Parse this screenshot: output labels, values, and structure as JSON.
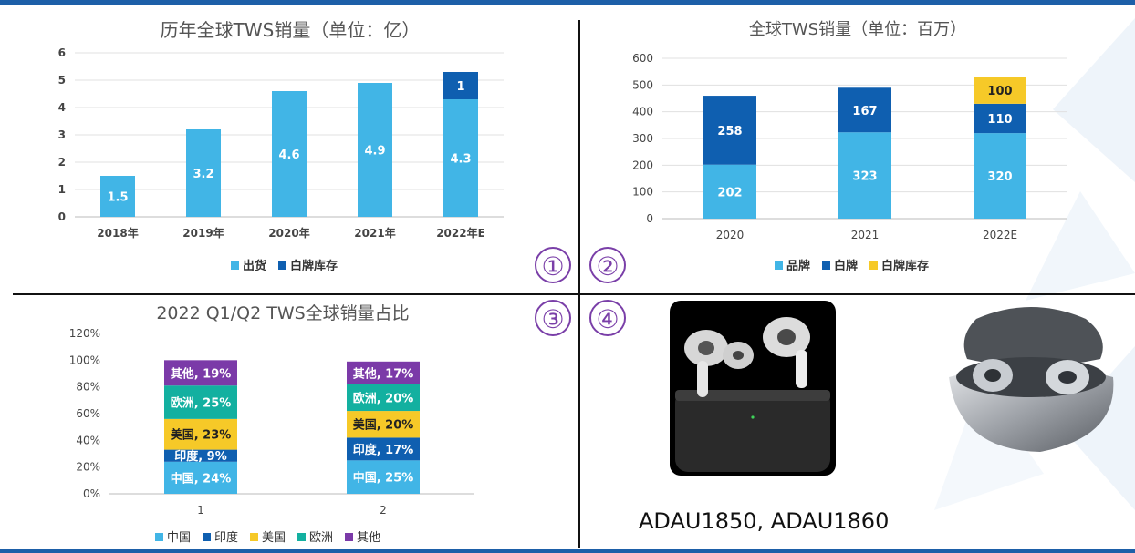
{
  "chart_data": [
    {
      "type": "bar",
      "stacked": true,
      "title": "历年全球TWS销量（单位：亿）",
      "categories": [
        "2018年",
        "2019年",
        "2020年",
        "2021年",
        "2022年E"
      ],
      "series": [
        {
          "name": "出货",
          "color": "#41b5e6",
          "values": [
            1.5,
            3.2,
            4.6,
            4.9,
            4.3
          ]
        },
        {
          "name": "白牌库存",
          "color": "#0f5fb0",
          "values": [
            0,
            0,
            0,
            0,
            1
          ]
        }
      ],
      "ylim": [
        0,
        6
      ],
      "yticks": [
        "0",
        "1",
        "2",
        "3",
        "4",
        "5",
        "6"
      ],
      "grid": true,
      "legend": "bottom"
    },
    {
      "type": "bar",
      "stacked": true,
      "title": "全球TWS销量（单位：百万）",
      "categories": [
        "2020",
        "2021",
        "2022E"
      ],
      "series": [
        {
          "name": "品牌",
          "color": "#41b5e6",
          "values": [
            202,
            323,
            320
          ]
        },
        {
          "name": "白牌",
          "color": "#0f5fb0",
          "values": [
            258,
            167,
            110
          ]
        },
        {
          "name": "白牌库存",
          "color": "#f6c928",
          "values": [
            0,
            0,
            100
          ]
        }
      ],
      "ylim": [
        0,
        600
      ],
      "yticks": [
        "0",
        "100",
        "200",
        "300",
        "400",
        "500",
        "600"
      ],
      "grid": true,
      "legend": "bottom"
    },
    {
      "type": "bar",
      "stacked": true,
      "percent": true,
      "title": "2022 Q1/Q2 TWS全球销量占比",
      "categories": [
        "1",
        "2"
      ],
      "series": [
        {
          "name": "中国",
          "color": "#41b5e6",
          "values": [
            24,
            25
          ],
          "labels": [
            "中国, 24%",
            "中国, 25%"
          ]
        },
        {
          "name": "印度",
          "color": "#0f5fb0",
          "values": [
            9,
            17
          ],
          "labels": [
            "印度, 9%",
            "印度, 17%"
          ]
        },
        {
          "name": "美国",
          "color": "#f6c928",
          "values": [
            23,
            20
          ],
          "labels": [
            "美国, 23%",
            "美国, 20%"
          ]
        },
        {
          "name": "欧洲",
          "color": "#13b0a0",
          "values": [
            25,
            20
          ],
          "labels": [
            "欧洲, 25%",
            "欧洲, 20%"
          ]
        },
        {
          "name": "其他",
          "color": "#7b3aa8",
          "values": [
            19,
            17
          ],
          "labels": [
            "其他, 19%",
            "其他, 17%"
          ]
        }
      ],
      "ylim": [
        0,
        120
      ],
      "yticks": [
        "0%",
        "20%",
        "40%",
        "60%",
        "80%",
        "100%",
        "120%"
      ],
      "grid": false,
      "legend": "bottom"
    }
  ],
  "circled_numbers": [
    "①",
    "②",
    "③",
    "④"
  ],
  "products": {
    "left_image": "airpods-pro-earbuds-with-charging-case",
    "right_image": "silver-earbuds-in-open-case",
    "caption": "ADAU1850, ADAU1860"
  }
}
